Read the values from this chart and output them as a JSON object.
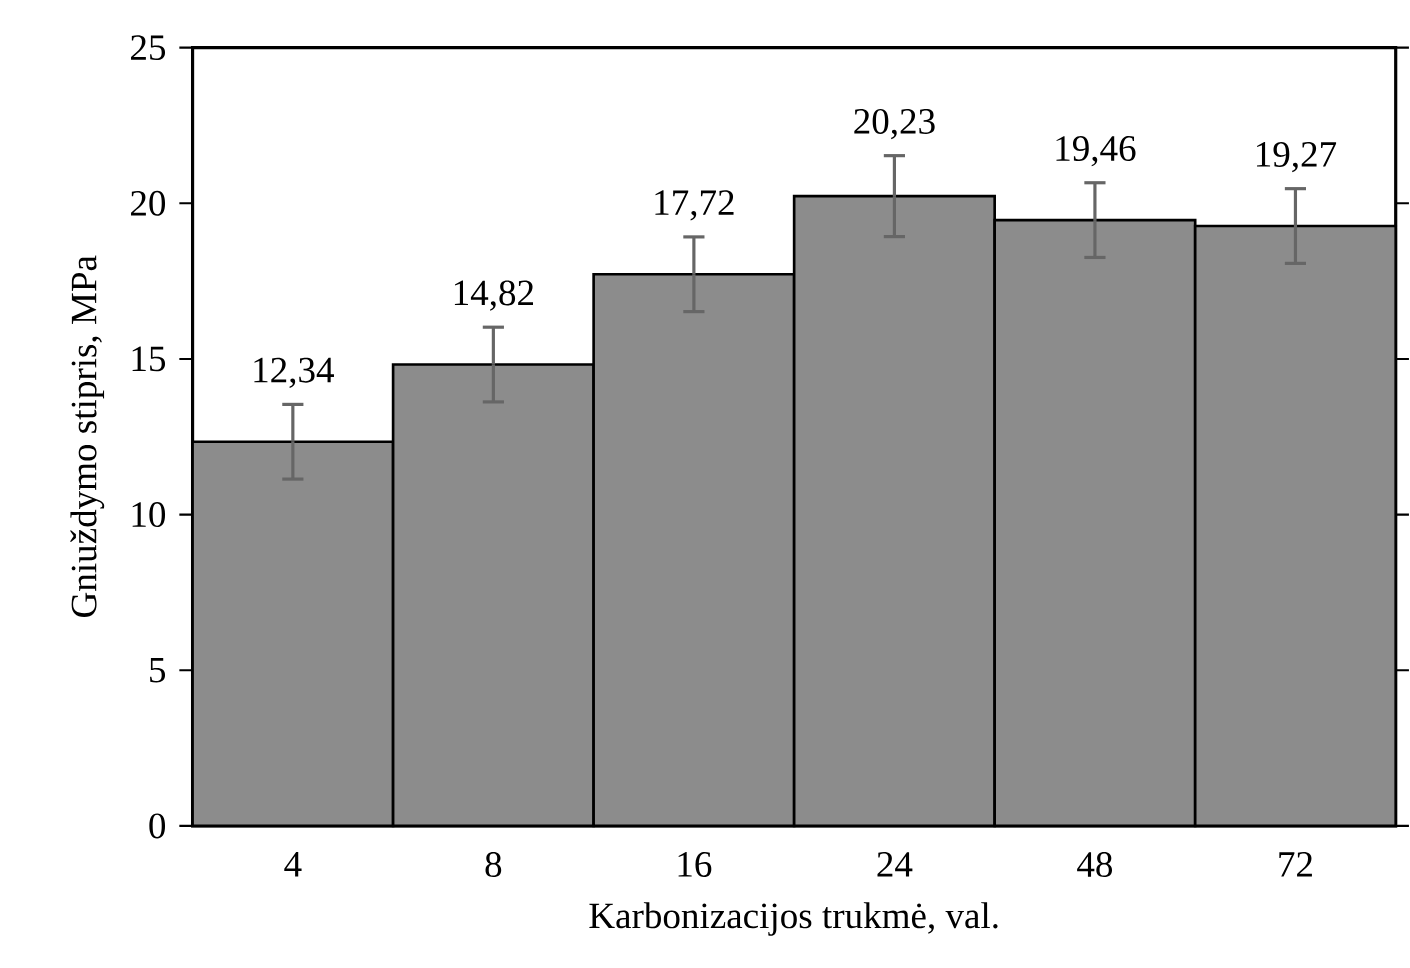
{
  "chart_data": {
    "type": "bar",
    "xlabel": "Karbonizacijos trukmė, val.",
    "ylabel": "Gniuždymo stipris, MPa",
    "categories": [
      "4",
      "8",
      "16",
      "24",
      "48",
      "72"
    ],
    "values": [
      12.34,
      14.82,
      17.72,
      20.23,
      19.46,
      19.27
    ],
    "errors": [
      1.2,
      1.2,
      1.2,
      1.3,
      1.2,
      1.2
    ],
    "value_labels": [
      "12,34",
      "14,82",
      "17,72",
      "20,23",
      "19,46",
      "19,27"
    ],
    "color": "#8c8c8c",
    "ylim": [
      0,
      25
    ],
    "yticks": [
      0,
      5,
      10,
      15,
      20,
      25
    ],
    "grid": false
  }
}
